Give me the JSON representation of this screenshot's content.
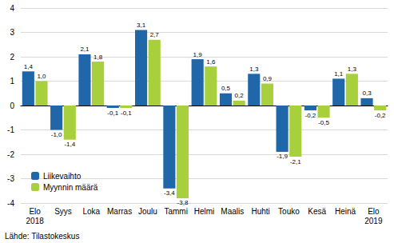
{
  "chart_data": {
    "type": "bar",
    "categories": [
      "Elo\n2018",
      "Syys",
      "Loka",
      "Marras",
      "Joulu",
      "Tammi",
      "Helmi",
      "Maalis",
      "Huhti",
      "Touko",
      "Kesä",
      "Heinä",
      "Elo\n2019"
    ],
    "series": [
      {
        "name": "Liikevaihto",
        "color": "#1f67a8",
        "values": [
          1.4,
          -1.0,
          2.1,
          -0.1,
          3.1,
          -3.4,
          1.9,
          0.5,
          1.3,
          -1.9,
          -0.2,
          1.1,
          0.3
        ],
        "value_labels": [
          "1,4",
          "-1,0",
          "2,1",
          "-0,1",
          "3,1",
          "-3,4",
          "1,9",
          "0,5",
          "1,3",
          "-1,9",
          "-0,2",
          "1,1",
          "0,3"
        ]
      },
      {
        "name": "Myynnin määrä",
        "color": "#a8cf3c",
        "values": [
          1.0,
          -1.4,
          1.8,
          -0.1,
          2.7,
          -3.8,
          1.6,
          0.2,
          0.9,
          -2.1,
          -0.5,
          1.3,
          -0.2
        ],
        "value_labels": [
          "1,0",
          "-1,4",
          "1,8",
          "-0,1",
          "2,7",
          "-3,8",
          "1,6",
          "0,2",
          "0,9",
          "-2,1",
          "-0,5",
          "1,3",
          "-0,2"
        ]
      }
    ],
    "ylim": [
      -4,
      4
    ],
    "yticks": [
      -4,
      -3,
      -2,
      -1,
      0,
      1,
      2,
      3,
      4
    ],
    "grid": true,
    "data_labels": true,
    "legend": "bottom-left",
    "annotations": [
      "Lähde: Tilastokeskus"
    ]
  }
}
